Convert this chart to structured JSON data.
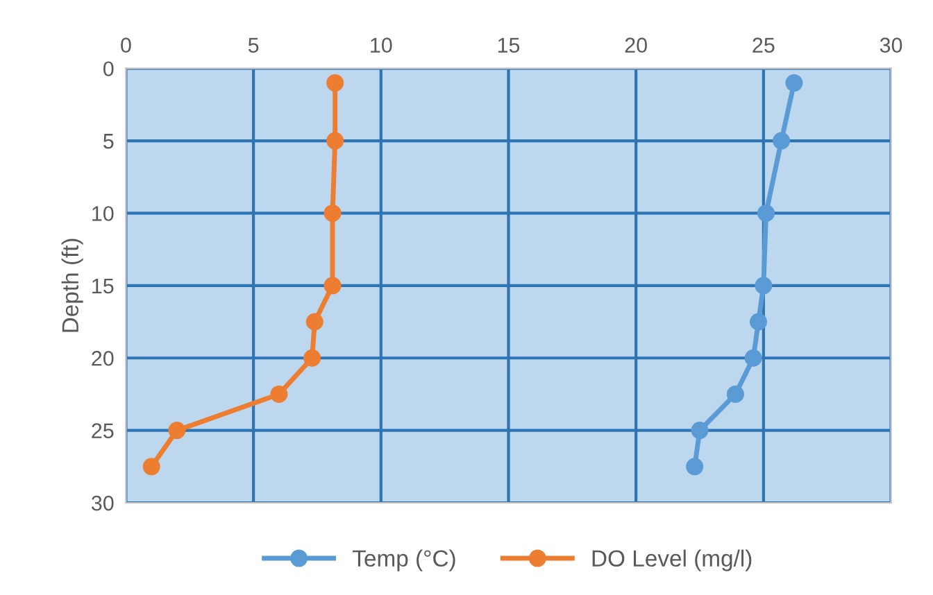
{
  "chart_data": {
    "type": "line",
    "ylabel": "Depth (ft)",
    "xlim": [
      0,
      30
    ],
    "xticks": [
      0,
      5,
      10,
      15,
      20,
      25,
      30
    ],
    "ylim": [
      30,
      0
    ],
    "yticks": [
      0,
      5,
      10,
      15,
      20,
      25,
      30
    ],
    "grid": true,
    "legend": "bottom",
    "marker": "circle",
    "line_style": "solid",
    "series": [
      {
        "name": "Temp (°C)",
        "color": "#5b9bd5",
        "x": [
          26.2,
          25.7,
          25.1,
          25.0,
          24.8,
          24.6,
          23.9,
          22.5,
          22.3
        ],
        "values": [
          1,
          5,
          10,
          15,
          17.5,
          20,
          22.5,
          25,
          27.5
        ]
      },
      {
        "name": "DO Level (mg/l)",
        "color": "#ed7d31",
        "x": [
          8.2,
          8.2,
          8.1,
          8.1,
          7.4,
          7.3,
          6.0,
          2.0,
          1.0
        ],
        "values": [
          1,
          5,
          10,
          15,
          17.5,
          20,
          22.5,
          25,
          27.5
        ]
      }
    ]
  }
}
